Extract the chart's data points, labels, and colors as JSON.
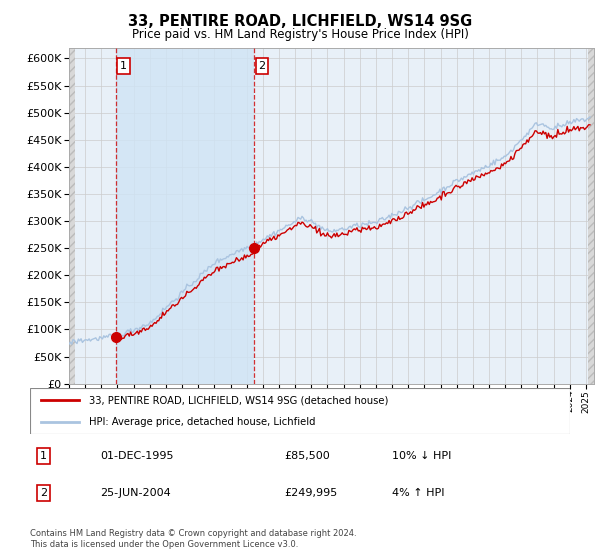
{
  "title": "33, PENTIRE ROAD, LICHFIELD, WS14 9SG",
  "subtitle": "Price paid vs. HM Land Registry's House Price Index (HPI)",
  "legend_line1": "33, PENTIRE ROAD, LICHFIELD, WS14 9SG (detached house)",
  "legend_line2": "HPI: Average price, detached house, Lichfield",
  "purchase1_date": "01-DEC-1995",
  "purchase1_price": "£85,500",
  "purchase1_hpi": "10% ↓ HPI",
  "purchase1_year": 1995.92,
  "purchase1_value": 85500,
  "purchase2_date": "25-JUN-2004",
  "purchase2_price": "£249,995",
  "purchase2_hpi": "4% ↑ HPI",
  "purchase2_year": 2004.48,
  "purchase2_value": 249995,
  "hpi_line_color": "#aac4e0",
  "price_line_color": "#cc0000",
  "marker_color": "#cc0000",
  "footnote": "Contains HM Land Registry data © Crown copyright and database right 2024.\nThis data is licensed under the Open Government Licence v3.0.",
  "ylim": [
    0,
    620000
  ],
  "yticks": [
    0,
    50000,
    100000,
    150000,
    200000,
    250000,
    300000,
    350000,
    400000,
    450000,
    500000,
    550000,
    600000
  ],
  "xlim_start": 1993.0,
  "xlim_end": 2025.5,
  "plot_bg_color": "#e8f0f8",
  "highlight_color": "#d0e4f5",
  "hatch_color": "#c8c8c8",
  "grid_color": "#cccccc",
  "hpi_seed": 42,
  "hpi_base_1993": 78000,
  "hpi_base_2004": 240000,
  "hpi_base_2025": 490000
}
